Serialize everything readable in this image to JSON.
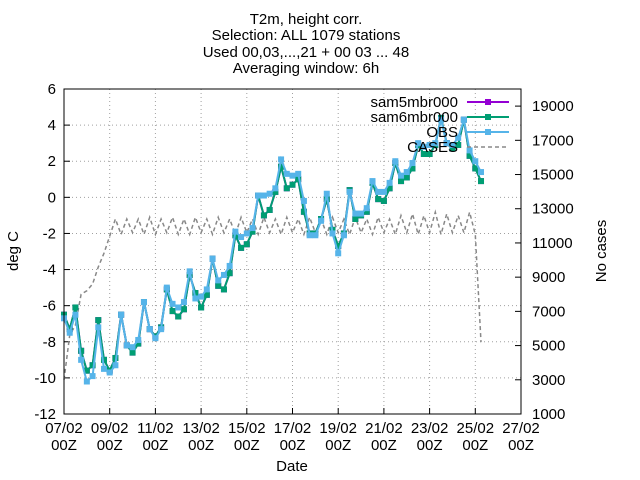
{
  "title_lines": [
    "T2m, height corr.",
    "Selection: ALL    1079 stations",
    "Used 00,03,...,21 + 00 03 ... 48",
    "Averaging window:  6h"
  ],
  "chart_data": {
    "type": "line",
    "xlabel": "Date",
    "ylabel": "deg C",
    "y2label": "No cases",
    "xlim": [
      0,
      20
    ],
    "ylim": [
      -12,
      6
    ],
    "y2lim": [
      1000,
      20000
    ],
    "xticks": [
      {
        "top": "07/02",
        "bottom": "00Z"
      },
      {
        "top": "09/02",
        "bottom": "00Z"
      },
      {
        "top": "11/02",
        "bottom": "00Z"
      },
      {
        "top": "13/02",
        "bottom": "00Z"
      },
      {
        "top": "15/02",
        "bottom": "00Z"
      },
      {
        "top": "17/02",
        "bottom": "00Z"
      },
      {
        "top": "19/02",
        "bottom": "00Z"
      },
      {
        "top": "21/02",
        "bottom": "00Z"
      },
      {
        "top": "23/02",
        "bottom": "00Z"
      },
      {
        "top": "25/02",
        "bottom": "00Z"
      },
      {
        "top": "27/02",
        "bottom": "00Z"
      }
    ],
    "yticks": [
      "-12",
      "-10",
      "-8",
      "-6",
      "-4",
      "-2",
      "0",
      "2",
      "4",
      "6"
    ],
    "y2ticks": [
      "1000",
      "3000",
      "5000",
      "7000",
      "9000",
      "11000",
      "13000",
      "15000",
      "17000",
      "19000"
    ],
    "legend_position": "top-right",
    "series": [
      {
        "name": "sam5mbr000",
        "color": "#9400d3",
        "marker": "square",
        "axis": "y",
        "x": [
          0.0,
          0.25,
          0.5,
          0.75,
          1.0,
          1.25,
          1.5,
          1.75,
          2.0,
          2.25,
          2.5,
          2.75,
          3.0,
          3.25,
          3.5,
          3.75,
          4.0,
          4.25,
          4.5,
          4.75,
          5.0,
          5.25,
          5.5,
          5.75,
          6.0,
          6.25,
          6.5,
          6.75,
          7.0,
          7.25,
          7.5,
          7.75,
          8.0,
          8.25,
          8.5,
          8.75,
          9.0,
          9.25,
          9.5,
          9.75,
          10.0,
          10.25,
          10.5,
          10.75,
          11.0,
          11.25,
          11.5,
          11.75,
          12.0,
          12.25,
          12.5,
          12.75,
          13.0,
          13.25,
          13.5,
          13.75,
          14.0,
          14.25,
          14.5,
          14.75,
          15.0,
          15.25,
          15.5,
          15.75,
          16.0,
          16.25,
          16.5,
          16.75,
          17.0,
          17.25,
          17.5,
          17.75,
          18.0,
          18.25
        ],
        "y": [
          -6.5,
          -7.3,
          -6.1,
          -8.5,
          -9.6,
          -9.3,
          -6.8,
          -9.0,
          -9.6,
          -8.9,
          -6.5,
          -8.2,
          -8.6,
          -8.1,
          -5.8,
          -7.3,
          -7.7,
          -7.2,
          -5.1,
          -6.3,
          -6.6,
          -6.2,
          -4.3,
          -5.3,
          -6.1,
          -5.4,
          -3.4,
          -4.9,
          -5.1,
          -4.2,
          -2.1,
          -2.8,
          -2.6,
          -1.9,
          0.1,
          -1.0,
          -0.7,
          0.3,
          1.7,
          0.5,
          0.7,
          1.0,
          -0.8,
          -2.0,
          -2.0,
          -1.2,
          -0.1,
          -1.8,
          -2.7,
          -2.0,
          0.4,
          -1.2,
          -1.0,
          -0.8,
          0.8,
          -0.1,
          -0.2,
          0.5,
          1.9,
          0.9,
          1.1,
          1.6,
          2.9,
          2.4,
          2.4,
          2.9,
          4.4,
          3.0,
          2.7,
          2.9,
          4.3,
          2.3,
          1.6,
          0.9
        ]
      },
      {
        "name": "sam6mbr000",
        "color": "#009e73",
        "marker": "square",
        "axis": "y",
        "x": [
          0.0,
          0.25,
          0.5,
          0.75,
          1.0,
          1.25,
          1.5,
          1.75,
          2.0,
          2.25,
          2.5,
          2.75,
          3.0,
          3.25,
          3.5,
          3.75,
          4.0,
          4.25,
          4.5,
          4.75,
          5.0,
          5.25,
          5.5,
          5.75,
          6.0,
          6.25,
          6.5,
          6.75,
          7.0,
          7.25,
          7.5,
          7.75,
          8.0,
          8.25,
          8.5,
          8.75,
          9.0,
          9.25,
          9.5,
          9.75,
          10.0,
          10.25,
          10.5,
          10.75,
          11.0,
          11.25,
          11.5,
          11.75,
          12.0,
          12.25,
          12.5,
          12.75,
          13.0,
          13.25,
          13.5,
          13.75,
          14.0,
          14.25,
          14.5,
          14.75,
          15.0,
          15.25,
          15.5,
          15.75,
          16.0,
          16.25,
          16.5,
          16.75,
          17.0,
          17.25,
          17.5,
          17.75,
          18.0,
          18.25
        ],
        "y": [
          -6.5,
          -7.3,
          -6.1,
          -8.5,
          -9.6,
          -9.3,
          -6.8,
          -9.0,
          -9.6,
          -8.9,
          -6.5,
          -8.2,
          -8.6,
          -8.1,
          -5.8,
          -7.3,
          -7.7,
          -7.2,
          -5.1,
          -6.3,
          -6.6,
          -6.2,
          -4.3,
          -5.3,
          -6.1,
          -5.4,
          -3.4,
          -4.9,
          -5.1,
          -4.2,
          -2.1,
          -2.8,
          -2.6,
          -1.9,
          0.1,
          -1.0,
          -0.7,
          0.3,
          1.7,
          0.5,
          0.7,
          1.0,
          -0.8,
          -2.0,
          -2.0,
          -1.2,
          -0.1,
          -1.8,
          -2.7,
          -2.0,
          0.4,
          -1.2,
          -1.0,
          -0.8,
          0.8,
          -0.1,
          -0.2,
          0.5,
          1.9,
          0.9,
          1.1,
          1.6,
          2.9,
          2.4,
          2.4,
          2.9,
          4.4,
          3.0,
          2.7,
          2.9,
          4.3,
          2.3,
          1.6,
          0.9
        ]
      },
      {
        "name": "OBS",
        "color": "#56b4e9",
        "marker": "square",
        "axis": "y",
        "x": [
          0.0,
          0.25,
          0.5,
          0.75,
          1.0,
          1.25,
          1.5,
          1.75,
          2.0,
          2.25,
          2.5,
          2.75,
          3.0,
          3.25,
          3.5,
          3.75,
          4.0,
          4.25,
          4.5,
          4.75,
          5.0,
          5.25,
          5.5,
          5.75,
          6.0,
          6.25,
          6.5,
          6.75,
          7.0,
          7.25,
          7.5,
          7.75,
          8.0,
          8.25,
          8.5,
          8.75,
          9.0,
          9.25,
          9.5,
          9.75,
          10.0,
          10.25,
          10.5,
          10.75,
          11.0,
          11.25,
          11.5,
          11.75,
          12.0,
          12.25,
          12.5,
          12.75,
          13.0,
          13.25,
          13.5,
          13.75,
          14.0,
          14.25,
          14.5,
          14.75,
          15.0,
          15.25,
          15.5,
          15.75,
          16.0,
          16.25,
          16.5,
          16.75,
          17.0,
          17.25,
          17.5,
          17.75,
          18.0,
          18.25
        ],
        "y": [
          -6.7,
          -7.5,
          -6.5,
          -9.0,
          -10.2,
          -9.9,
          -7.2,
          -9.5,
          -9.7,
          -9.3,
          -6.5,
          -8.2,
          -8.3,
          -7.9,
          -5.8,
          -7.3,
          -7.8,
          -7.3,
          -5.0,
          -5.9,
          -6.1,
          -5.8,
          -4.1,
          -5.6,
          -5.5,
          -5.1,
          -3.4,
          -4.6,
          -4.3,
          -3.8,
          -1.9,
          -2.2,
          -2.0,
          -1.7,
          0.1,
          0.1,
          0.2,
          0.5,
          2.1,
          1.3,
          1.2,
          1.3,
          -0.2,
          -2.1,
          -2.1,
          -1.3,
          0.2,
          -2.0,
          -3.1,
          -2.1,
          0.3,
          -0.9,
          -0.9,
          -0.6,
          0.9,
          0.3,
          0.3,
          0.8,
          2.0,
          1.2,
          1.4,
          1.9,
          3.0,
          2.8,
          2.9,
          3.0,
          4.3,
          3.0,
          2.9,
          3.3,
          4.3,
          2.6,
          2.0,
          1.4
        ]
      },
      {
        "name": "CASES",
        "color": "#888888",
        "marker": "none",
        "dashed": true,
        "axis": "y2",
        "x": [
          0.0,
          0.25,
          0.5,
          0.75,
          1.0,
          1.25,
          1.5,
          1.75,
          2.0,
          2.25,
          2.5,
          2.75,
          3.0,
          3.25,
          3.5,
          3.75,
          4.0,
          4.25,
          4.5,
          4.75,
          5.0,
          5.25,
          5.5,
          5.75,
          6.0,
          6.25,
          6.5,
          6.75,
          7.0,
          7.25,
          7.5,
          7.75,
          8.0,
          8.25,
          8.5,
          8.75,
          9.0,
          9.25,
          9.5,
          9.75,
          10.0,
          10.25,
          10.5,
          10.75,
          11.0,
          11.25,
          11.5,
          11.75,
          12.0,
          12.25,
          12.5,
          12.75,
          13.0,
          13.25,
          13.5,
          13.75,
          14.0,
          14.25,
          14.5,
          14.75,
          15.0,
          15.25,
          15.5,
          15.75,
          16.0,
          16.25,
          16.5,
          16.75,
          17.0,
          17.25,
          17.5,
          17.75,
          18.0,
          18.25
        ],
        "y": [
          3000,
          5600,
          6200,
          8000,
          8200,
          8600,
          9600,
          10400,
          11400,
          12400,
          11500,
          12400,
          11600,
          12400,
          11500,
          12500,
          11500,
          12400,
          11600,
          12500,
          11500,
          12400,
          11500,
          12500,
          11600,
          12400,
          11500,
          12500,
          11600,
          12400,
          11500,
          12500,
          11600,
          12400,
          11500,
          12500,
          11600,
          12400,
          11500,
          12500,
          11600,
          12400,
          11500,
          12500,
          11600,
          12400,
          11500,
          12500,
          11600,
          12400,
          11500,
          12500,
          11600,
          12400,
          11500,
          12500,
          11600,
          12400,
          11500,
          12600,
          11600,
          12700,
          11500,
          12600,
          11600,
          12800,
          11500,
          12700,
          11600,
          12600,
          11600,
          12800,
          11500,
          5200
        ]
      }
    ]
  }
}
